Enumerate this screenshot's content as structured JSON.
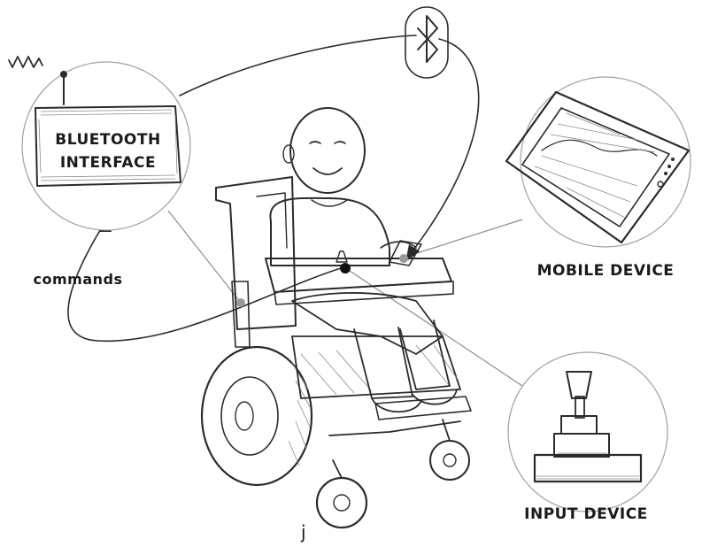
{
  "labels": {
    "bluetooth_interface_line1": "BLUETOOTH",
    "bluetooth_interface_line2": "INTERFACE",
    "mobile_device": "MOBILE DEVICE",
    "input_device": "INPUT DEVICE",
    "commands": "commands",
    "signature": "j"
  },
  "colors": {
    "ink": "#2b2b2b",
    "connector": "#8c8c8c",
    "marker_fill": "#999999",
    "joystick_dot": "#111111"
  },
  "icons": [
    "bluetooth-icon",
    "antenna-icon",
    "wireless-signal-icon",
    "tablet-icon",
    "joystick-icon",
    "wheelchair-icon"
  ]
}
